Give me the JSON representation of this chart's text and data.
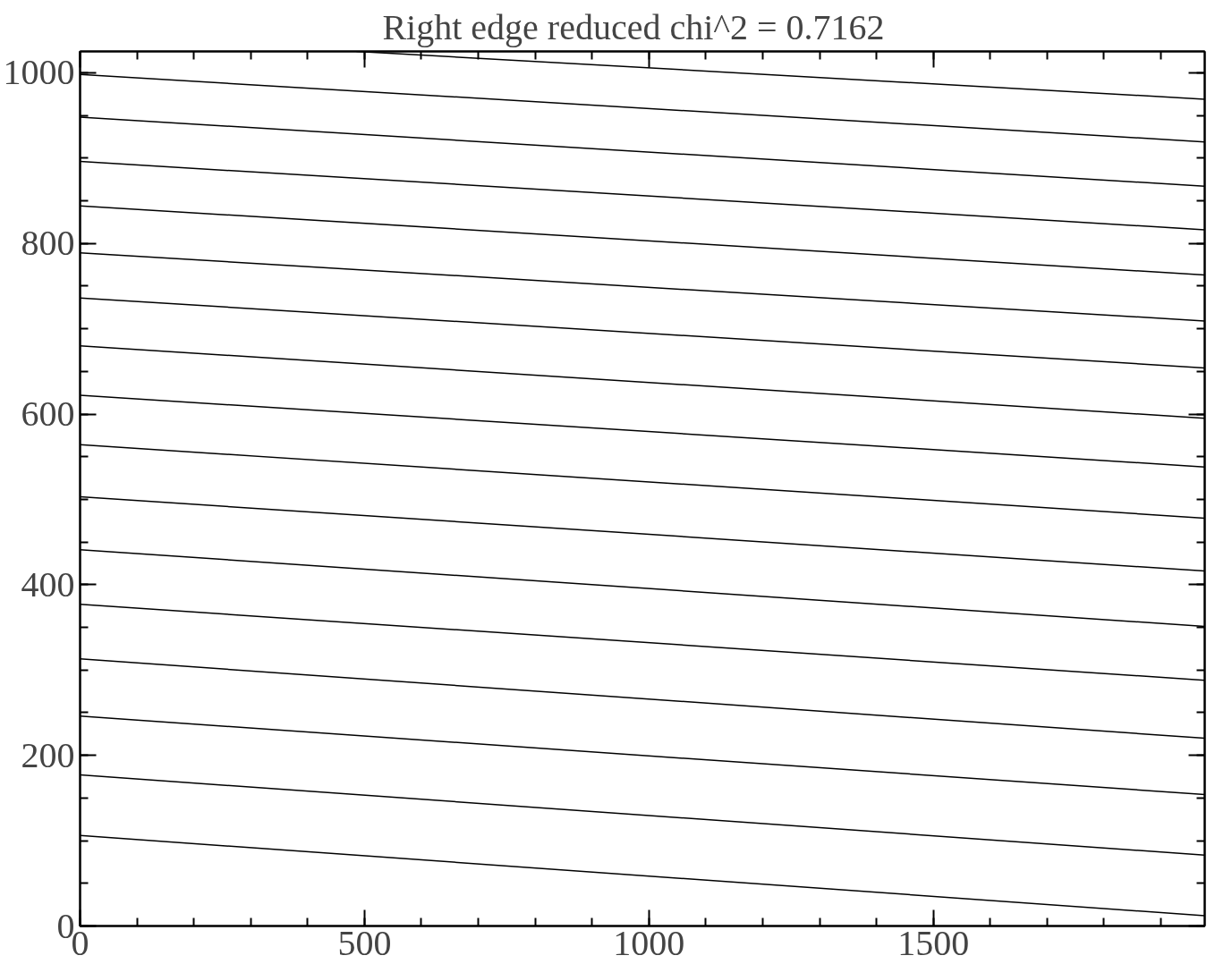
{
  "chart_data": {
    "type": "line",
    "title": "Right edge reduced chi^2 =   0.7162",
    "xlim": [
      0,
      1977
    ],
    "ylim": [
      0,
      1025
    ],
    "xticks": [
      0,
      500,
      1000,
      1500
    ],
    "yticks": [
      0,
      200,
      400,
      600,
      800,
      1000
    ],
    "grid": false,
    "marker": "none",
    "line_style": "solid",
    "series": [
      {
        "color": "#000000",
        "x": [
          486,
          1977
        ],
        "values": [
          1025,
          969
        ]
      },
      {
        "color": "#000000",
        "x": [
          0,
          1977
        ],
        "values": [
          998,
          919
        ]
      },
      {
        "color": "#000000",
        "x": [
          0,
          1977
        ],
        "values": [
          948,
          867
        ]
      },
      {
        "color": "#000000",
        "x": [
          0,
          1977
        ],
        "values": [
          896,
          816
        ]
      },
      {
        "color": "#000000",
        "x": [
          0,
          1977
        ],
        "values": [
          844,
          763
        ]
      },
      {
        "color": "#000000",
        "x": [
          0,
          1977
        ],
        "values": [
          789,
          709
        ]
      },
      {
        "color": "#000000",
        "x": [
          0,
          1977
        ],
        "values": [
          736,
          654
        ]
      },
      {
        "color": "#000000",
        "x": [
          0,
          1977
        ],
        "values": [
          680,
          595
        ]
      },
      {
        "color": "#000000",
        "x": [
          0,
          1977
        ],
        "values": [
          622,
          538
        ]
      },
      {
        "color": "#000000",
        "x": [
          0,
          1977
        ],
        "values": [
          564,
          478
        ]
      },
      {
        "color": "#000000",
        "x": [
          0,
          1977
        ],
        "values": [
          503,
          416
        ]
      },
      {
        "color": "#000000",
        "x": [
          0,
          1977
        ],
        "values": [
          441,
          351
        ]
      },
      {
        "color": "#000000",
        "x": [
          0,
          1977
        ],
        "values": [
          377,
          288
        ]
      },
      {
        "color": "#000000",
        "x": [
          0,
          1977
        ],
        "values": [
          313,
          220
        ]
      },
      {
        "color": "#000000",
        "x": [
          0,
          1977
        ],
        "values": [
          246,
          154
        ]
      },
      {
        "color": "#000000",
        "x": [
          0,
          1977
        ],
        "values": [
          177,
          83
        ]
      },
      {
        "color": "#000000",
        "x": [
          0,
          1977
        ],
        "values": [
          106,
          12
        ]
      }
    ]
  }
}
